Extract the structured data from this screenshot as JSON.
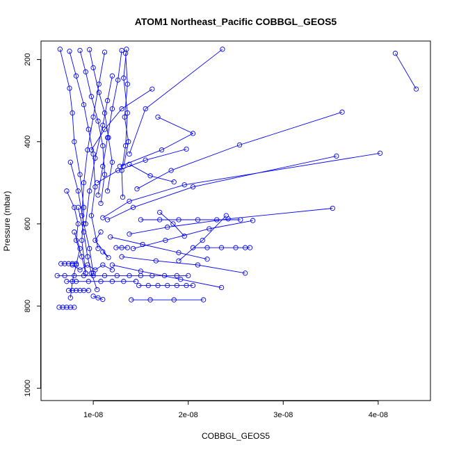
{
  "chart_data": {
    "type": "line",
    "title": "ATOM1 Northeast_Pacific COBBGL_GEOS5",
    "xlabel": "COBBGL_GEOS5",
    "ylabel": "Pressure (mbar)",
    "xlim": [
      4.5e-09,
      4.55e-08
    ],
    "ylim": [
      1030,
      155
    ],
    "y_reversed": true,
    "x_ticks": [
      1e-08,
      2e-08,
      3e-08,
      4e-08
    ],
    "x_tick_labels": [
      "1e-08",
      "2e-08",
      "3e-08",
      "4e-08"
    ],
    "y_ticks": [
      200,
      400,
      600,
      800,
      1000
    ],
    "y_tick_labels": [
      "200",
      "400",
      "600",
      "800",
      "1000"
    ],
    "grid": false,
    "legend": "none",
    "marker": "open-circle",
    "color": "#0000ff",
    "series": [
      {
        "x": [
          4.18e-08,
          4.4e-08
        ],
        "y": [
          185,
          272
        ]
      },
      {
        "x": [
          2.36e-08,
          1.55e-08,
          1.38e-08
        ],
        "y": [
          175,
          320,
          430
        ]
      },
      {
        "x": [
          3.62e-08,
          2.54e-08,
          1.82e-08,
          1.46e-08
        ],
        "y": [
          328,
          408,
          470,
          515
        ]
      },
      {
        "x": [
          4.02e-08,
          1.96e-08,
          1.38e-08,
          1.1e-08
        ],
        "y": [
          428,
          505,
          545,
          585
        ]
      },
      {
        "x": [
          3.56e-08,
          2.05e-08,
          1.42e-08,
          1.15e-08
        ],
        "y": [
          435,
          510,
          560,
          590
        ]
      },
      {
        "x": [
          3.52e-08,
          2.42e-08,
          1.78e-08,
          1.38e-08
        ],
        "y": [
          562,
          588,
          608,
          625
        ]
      },
      {
        "x": [
          1.98e-08,
          1.55e-08,
          1.26e-08,
          1.04e-08
        ],
        "y": [
          418,
          445,
          470,
          500
        ]
      },
      {
        "x": [
          1.68e-08,
          2.05e-08,
          1.72e-08,
          1.28e-08
        ],
        "y": [
          340,
          380,
          420,
          460
        ]
      },
      {
        "x": [
          1.62e-08,
          1.3e-08,
          1.12e-08,
          9.8e-09
        ],
        "y": [
          272,
          320,
          370,
          420
        ]
      },
      {
        "x": [
          2.68e-08,
          2.22e-08,
          1.76e-08,
          1.42e-08
        ],
        "y": [
          592,
          612,
          640,
          660
        ]
      },
      {
        "x": [
          2.35e-08,
          1.92e-08,
          1.5e-08,
          1.2e-08
        ],
        "y": [
          755,
          735,
          715,
          700
        ]
      },
      {
        "x": [
          2.6e-08,
          2.1e-08,
          1.66e-08,
          1.3e-08
        ],
        "y": [
          720,
          700,
          690,
          680
        ]
      },
      {
        "x": [
          2.16e-08,
          1.85e-08,
          1.6e-08,
          1.4e-08
        ],
        "y": [
          785,
          785,
          785,
          785
        ]
      },
      {
        "x": [
          6.5e-09,
          7.5e-09,
          7.8e-09,
          8e-09,
          8.6e-09,
          9e-09,
          8.8e-09,
          9.2e-09
        ],
        "y": [
          175,
          270,
          330,
          400,
          480,
          560,
          640,
          720
        ]
      },
      {
        "x": [
          7.5e-09,
          8.2e-09,
          9e-09,
          9.5e-09,
          1e-08,
          1.02e-08,
          9.8e-09,
          1.05e-08
        ],
        "y": [
          180,
          240,
          310,
          370,
          430,
          510,
          580,
          660
        ]
      },
      {
        "x": [
          8.6e-09,
          9.2e-09,
          9.8e-09,
          1.05e-08,
          1.1e-08,
          1.12e-08,
          1.08e-08
        ],
        "y": [
          178,
          230,
          290,
          350,
          410,
          480,
          550
        ]
      },
      {
        "x": [
          9.6e-09,
          1e-08,
          1.06e-08,
          1.12e-08,
          1.16e-08,
          1.2e-08,
          1.15e-08
        ],
        "y": [
          176,
          220,
          280,
          330,
          390,
          450,
          520
        ]
      },
      {
        "x": [
          1.3e-08,
          1.26e-08,
          1.2e-08,
          1.15e-08,
          1.1e-08,
          1.05e-08
        ],
        "y": [
          178,
          250,
          320,
          390,
          460,
          530
        ]
      },
      {
        "x": [
          1.35e-08,
          1.32e-08,
          1.36e-08,
          1.34e-08,
          1.3e-08,
          1.31e-08
        ],
        "y": [
          175,
          245,
          330,
          410,
          470,
          535
        ]
      },
      {
        "x": [
          1.34e-08,
          1.36e-08,
          1.33e-08,
          1.37e-08,
          1.32e-08
        ],
        "y": [
          185,
          260,
          340,
          400,
          460
        ]
      },
      {
        "x": [
          1.12e-08,
          1.06e-08,
          1e-08,
          9.4e-09,
          9e-09,
          8.8e-09
        ],
        "y": [
          182,
          260,
          340,
          420,
          500,
          580
        ]
      },
      {
        "x": [
          1.2e-08,
          1.15e-08,
          1.1e-08,
          1.02e-08,
          9.6e-09,
          9.2e-09
        ],
        "y": [
          240,
          300,
          360,
          440,
          520,
          600
        ]
      },
      {
        "x": [
          7.2e-09,
          8e-09,
          8.4e-09,
          8.2e-09,
          8.8e-09,
          9.2e-09
        ],
        "y": [
          520,
          560,
          600,
          640,
          680,
          720
        ]
      },
      {
        "x": [
          7.6e-09,
          8.4e-09,
          9e-09,
          9.6e-09,
          1e-08
        ],
        "y": [
          450,
          520,
          600,
          660,
          720
        ]
      },
      {
        "x": [
          8e-09,
          8.6e-09,
          8.2e-09,
          7.8e-09,
          7.6e-09
        ],
        "y": [
          620,
          660,
          700,
          740,
          780
        ]
      },
      {
        "x": [
          8.4e-09,
          9e-09,
          9.4e-09,
          9.8e-09,
          1.04e-08
        ],
        "y": [
          560,
          620,
          680,
          720,
          760
        ]
      },
      {
        "x": [
          6.2e-09,
          7e-09,
          8e-09,
          9e-09,
          1e-08,
          1.12e-08,
          1.25e-08,
          1.38e-08,
          1.5e-08,
          1.62e-08,
          1.75e-08,
          1.88e-08,
          2e-08
        ],
        "y": [
          726,
          726,
          726,
          726,
          726,
          726,
          726,
          726,
          726,
          726,
          726,
          726,
          726
        ]
      },
      {
        "x": [
          1.48e-08,
          1.58e-08,
          1.68e-08,
          1.78e-08,
          1.88e-08,
          1.98e-08,
          2.05e-08
        ],
        "y": [
          750,
          750,
          750,
          750,
          750,
          750,
          750
        ]
      },
      {
        "x": [
          7.2e-09,
          8.2e-09,
          9.5e-09,
          1.08e-08,
          1.2e-08,
          1.32e-08,
          1.45e-08
        ],
        "y": [
          740,
          740,
          740,
          740,
          740,
          740,
          740
        ]
      },
      {
        "x": [
          6.6e-09,
          7e-09,
          7.4e-09,
          7.8e-09,
          8.2e-09
        ],
        "y": [
          697,
          697,
          697,
          697,
          697
        ]
      },
      {
        "x": [
          6.4e-09,
          6.8e-09,
          7.2e-09,
          7.6e-09,
          8e-09
        ],
        "y": [
          803,
          803,
          803,
          803,
          803
        ]
      },
      {
        "x": [
          1.24e-08,
          1.3e-08,
          1.36e-08
        ],
        "y": [
          658,
          658,
          658
        ]
      },
      {
        "x": [
          2.05e-08,
          2.2e-08,
          2.35e-08,
          2.5e-08,
          2.6e-08,
          2.65e-08
        ],
        "y": [
          658,
          658,
          658,
          658,
          658,
          658
        ]
      },
      {
        "x": [
          1.5e-08,
          1.7e-08,
          1.9e-08,
          2.1e-08,
          2.3e-08,
          2.55e-08
        ],
        "y": [
          590,
          590,
          590,
          590,
          590,
          590
        ]
      },
      {
        "x": [
          7.8e-09,
          8.6e-09,
          9.4e-09,
          1.02e-08,
          1.1e-08,
          1.2e-08
        ],
        "y": [
          700,
          712,
          700,
          712,
          700,
          712
        ]
      },
      {
        "x": [
          7.4e-09,
          7.8e-09,
          8.2e-09,
          8.6e-09,
          9e-09,
          9.5e-09
        ],
        "y": [
          762,
          762,
          762,
          762,
          762,
          762
        ]
      },
      {
        "x": [
          1e-08,
          1.05e-08,
          1.1e-08
        ],
        "y": [
          776,
          780,
          784
        ]
      },
      {
        "x": [
          1.1e-08,
          1.16e-08,
          1.02e-08,
          1.08e-08
        ],
        "y": [
          668,
          682,
          640,
          620
        ]
      },
      {
        "x": [
          1.38e-08,
          1.6e-08,
          1.85e-08
        ],
        "y": [
          455,
          483,
          498
        ]
      },
      {
        "x": [
          2.4e-08,
          2.15e-08,
          1.9e-08
        ],
        "y": [
          580,
          640,
          690
        ]
      },
      {
        "x": [
          1.18e-08,
          1.52e-08,
          1.9e-08,
          2.2e-08
        ],
        "y": [
          632,
          650,
          670,
          686
        ]
      },
      {
        "x": [
          1.7e-08,
          1.84e-08,
          1.96e-08
        ],
        "y": [
          572,
          600,
          630
        ]
      }
    ]
  }
}
